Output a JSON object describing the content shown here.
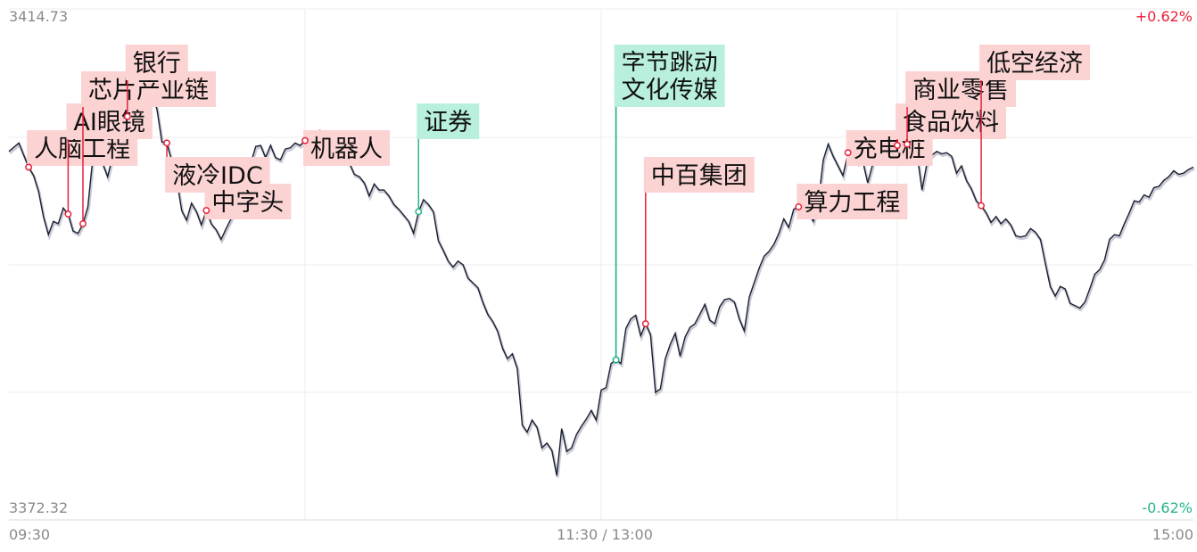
{
  "chart_data": {
    "type": "line",
    "title": "",
    "xlabel": "",
    "ylabel": "",
    "y_axis": {
      "max_label": "3414.73",
      "min_label": "3372.32",
      "max": 3414.73,
      "min": 3372.32
    },
    "pct_axis": {
      "max_label": "+0.62%",
      "min_label": "-0.62%"
    },
    "x_ticks": [
      "09:30",
      "11:30 / 13:00",
      "15:00"
    ],
    "session_minutes": 240,
    "grid": true,
    "colors": {
      "line": "#1b1e2e",
      "up": "#e8203a",
      "down": "#27b38a",
      "tag_up_bg": "#fcd3d3",
      "tag_down_bg": "#b8f0dd"
    },
    "series": [
      {
        "values": [
          [
            0,
            3402.9
          ],
          [
            2,
            3403.6
          ],
          [
            4,
            3401.6
          ],
          [
            5,
            3400.9
          ],
          [
            6,
            3399.6
          ],
          [
            7,
            3397.5
          ],
          [
            8,
            3396.0
          ],
          [
            9,
            3397.1
          ],
          [
            10,
            3396.9
          ],
          [
            11,
            3398.2
          ],
          [
            12,
            3397.7
          ],
          [
            13,
            3396.3
          ],
          [
            14,
            3396.1
          ],
          [
            15,
            3396.9
          ],
          [
            16,
            3398.3
          ],
          [
            17,
            3402.4
          ],
          [
            18,
            3405.1
          ],
          [
            19,
            3401.9
          ],
          [
            20,
            3400.8
          ],
          [
            21,
            3402.5
          ],
          [
            22,
            3405.5
          ],
          [
            23,
            3407.1
          ],
          [
            24,
            3405.8
          ],
          [
            25,
            3407.3
          ],
          [
            26,
            3407.7
          ],
          [
            27,
            3409.0
          ],
          [
            28,
            3408.7
          ],
          [
            29,
            3407.7
          ],
          [
            30,
            3406.4
          ],
          [
            31,
            3403.7
          ],
          [
            32,
            3403.6
          ],
          [
            33,
            3402.1
          ],
          [
            34,
            3400.6
          ],
          [
            35,
            3398.0
          ],
          [
            36,
            3397.2
          ],
          [
            37,
            3398.6
          ],
          [
            38,
            3397.9
          ],
          [
            39,
            3396.8
          ],
          [
            40,
            3398.0
          ],
          [
            41,
            3396.9
          ],
          [
            42,
            3396.4
          ],
          [
            43,
            3395.6
          ],
          [
            44,
            3396.5
          ],
          [
            45,
            3397.3
          ],
          [
            46,
            3398.4
          ],
          [
            47,
            3399.5
          ],
          [
            48,
            3400.4
          ],
          [
            49,
            3401.9
          ],
          [
            50,
            3403.3
          ],
          [
            51,
            3403.4
          ],
          [
            52,
            3402.4
          ],
          [
            53,
            3403.4
          ],
          [
            54,
            3402.4
          ],
          [
            55,
            3402.2
          ],
          [
            56,
            3403.1
          ],
          [
            57,
            3403.2
          ],
          [
            58,
            3403.6
          ],
          [
            59,
            3403.4
          ],
          [
            60,
            3403.8
          ],
          [
            61,
            3404.4
          ],
          [
            62,
            3403.6
          ],
          [
            63,
            3404.6
          ],
          [
            64,
            3403.4
          ],
          [
            65,
            3402.9
          ],
          [
            66,
            3403.0
          ],
          [
            67,
            3402.6
          ],
          [
            68,
            3402.1
          ],
          [
            69,
            3401.9
          ],
          [
            70,
            3401.0
          ],
          [
            71,
            3400.8
          ],
          [
            72,
            3400.3
          ],
          [
            73,
            3399.2
          ],
          [
            74,
            3400.2
          ],
          [
            75,
            3399.7
          ],
          [
            76,
            3399.7
          ],
          [
            77,
            3399.2
          ],
          [
            78,
            3398.5
          ],
          [
            79,
            3398.1
          ],
          [
            80,
            3397.6
          ],
          [
            81,
            3397.1
          ],
          [
            82,
            3396.1
          ],
          [
            83,
            3397.9
          ],
          [
            84,
            3398.9
          ],
          [
            85,
            3398.5
          ],
          [
            86,
            3397.9
          ],
          [
            87,
            3395.5
          ],
          [
            88,
            3394.7
          ],
          [
            89,
            3393.8
          ],
          [
            90,
            3393.3
          ],
          [
            91,
            3393.8
          ],
          [
            92,
            3393.5
          ],
          [
            93,
            3392.4
          ],
          [
            94,
            3392.0
          ],
          [
            95,
            3391.6
          ],
          [
            96,
            3390.4
          ],
          [
            97,
            3389.4
          ],
          [
            98,
            3388.8
          ],
          [
            99,
            3388.0
          ],
          [
            100,
            3386.6
          ],
          [
            101,
            3385.7
          ],
          [
            102,
            3386.1
          ],
          [
            103,
            3384.9
          ],
          [
            104,
            3380.2
          ],
          [
            105,
            3379.6
          ],
          [
            106,
            3380.6
          ],
          [
            107,
            3380.0
          ],
          [
            108,
            3378.3
          ],
          [
            109,
            3378.7
          ],
          [
            110,
            3378.1
          ],
          [
            111,
            3376.0
          ],
          [
            112,
            3379.9
          ],
          [
            113,
            3378.0
          ],
          [
            114,
            3378.3
          ],
          [
            115,
            3379.4
          ],
          [
            116,
            3380.1
          ],
          [
            117,
            3380.7
          ],
          [
            118,
            3381.4
          ],
          [
            119,
            3380.6
          ],
          [
            120,
            3383.1
          ],
          [
            121,
            3383.3
          ],
          [
            122,
            3385.3
          ],
          [
            123,
            3385.6
          ],
          [
            124,
            3385.3
          ],
          [
            125,
            3388.2
          ],
          [
            126,
            3389.0
          ],
          [
            127,
            3389.3
          ],
          [
            128,
            3387.6
          ],
          [
            129,
            3388.6
          ],
          [
            130,
            3387.7
          ],
          [
            131,
            3382.9
          ],
          [
            132,
            3383.2
          ],
          [
            133,
            3385.7
          ],
          [
            134,
            3386.9
          ],
          [
            135,
            3387.8
          ],
          [
            136,
            3385.9
          ],
          [
            137,
            3387.5
          ],
          [
            138,
            3388.3
          ],
          [
            139,
            3388.6
          ],
          [
            140,
            3389.4
          ],
          [
            141,
            3390.2
          ],
          [
            142,
            3388.9
          ],
          [
            143,
            3388.6
          ],
          [
            144,
            3390.0
          ],
          [
            145,
            3390.6
          ],
          [
            146,
            3390.7
          ],
          [
            147,
            3390.4
          ],
          [
            148,
            3389.0
          ],
          [
            149,
            3388.0
          ],
          [
            150,
            3390.8
          ],
          [
            151,
            3392.0
          ],
          [
            152,
            3393.2
          ],
          [
            153,
            3394.2
          ],
          [
            154,
            3394.6
          ],
          [
            155,
            3395.2
          ],
          [
            156,
            3396.1
          ],
          [
            157,
            3397.3
          ],
          [
            158,
            3396.6
          ],
          [
            159,
            3398.1
          ],
          [
            160,
            3398.3
          ],
          [
            161,
            3398.6
          ],
          [
            162,
            3397.8
          ],
          [
            163,
            3397.1
          ],
          [
            164,
            3398.7
          ],
          [
            165,
            3402.2
          ],
          [
            166,
            3403.5
          ],
          [
            167,
            3402.5
          ],
          [
            168,
            3401.7
          ],
          [
            169,
            3400.9
          ],
          [
            170,
            3402.8
          ],
          [
            171,
            3402.2
          ],
          [
            172,
            3401.9
          ],
          [
            173,
            3402.1
          ],
          [
            174,
            3400.3
          ],
          [
            175,
            3401.8
          ],
          [
            176,
            3402.9
          ],
          [
            177,
            3402.4
          ],
          [
            178,
            3402.9
          ],
          [
            179,
            3403.3
          ],
          [
            180,
            3403.4
          ],
          [
            181,
            3403.7
          ],
          [
            182,
            3403.5
          ],
          [
            183,
            3403.6
          ],
          [
            184,
            3402.7
          ],
          [
            185,
            3399.7
          ],
          [
            186,
            3401.9
          ],
          [
            187,
            3402.6
          ],
          [
            188,
            3402.9
          ],
          [
            189,
            3402.7
          ],
          [
            190,
            3402.8
          ],
          [
            191,
            3402.5
          ],
          [
            192,
            3401.1
          ],
          [
            193,
            3401.7
          ],
          [
            194,
            3400.5
          ],
          [
            195,
            3399.8
          ],
          [
            196,
            3398.8
          ],
          [
            197,
            3398.4
          ],
          [
            198,
            3397.8
          ],
          [
            199,
            3397.0
          ],
          [
            200,
            3397.5
          ],
          [
            201,
            3396.9
          ],
          [
            202,
            3397.3
          ],
          [
            203,
            3396.8
          ],
          [
            204,
            3395.9
          ],
          [
            205,
            3395.8
          ],
          [
            206,
            3395.9
          ],
          [
            207,
            3396.5
          ],
          [
            208,
            3396.2
          ],
          [
            209,
            3395.6
          ],
          [
            210,
            3393.6
          ],
          [
            211,
            3391.7
          ],
          [
            212,
            3390.9
          ],
          [
            213,
            3391.7
          ],
          [
            214,
            3391.5
          ],
          [
            215,
            3390.3
          ],
          [
            216,
            3390.1
          ],
          [
            217,
            3389.9
          ],
          [
            218,
            3390.4
          ],
          [
            219,
            3391.5
          ],
          [
            220,
            3392.7
          ],
          [
            221,
            3393.1
          ],
          [
            222,
            3393.9
          ],
          [
            223,
            3395.6
          ],
          [
            224,
            3396.0
          ],
          [
            225,
            3395.9
          ],
          [
            226,
            3396.9
          ],
          [
            227,
            3397.8
          ],
          [
            228,
            3398.8
          ],
          [
            229,
            3398.7
          ],
          [
            230,
            3399.3
          ],
          [
            231,
            3399.1
          ],
          [
            232,
            3399.9
          ],
          [
            233,
            3400.0
          ],
          [
            234,
            3400.5
          ],
          [
            235,
            3400.8
          ],
          [
            236,
            3401.3
          ],
          [
            237,
            3401.0
          ],
          [
            238,
            3401.1
          ],
          [
            239,
            3401.4
          ],
          [
            240,
            3401.6
          ]
        ]
      }
    ],
    "annotations": [
      {
        "label": "人脑工程",
        "t": 4,
        "tag_level": 2.2,
        "tone": "up"
      },
      {
        "label": "AI眼镜",
        "t": 12,
        "tag_level": 1.7,
        "tone": "up"
      },
      {
        "label": "芯片产业链",
        "t": 15,
        "tag_level": 1.1,
        "tone": "up"
      },
      {
        "label": "银行",
        "t": 24,
        "tag_level": 0.6,
        "tone": "up"
      },
      {
        "label": "液冷IDC",
        "t": 32,
        "tag_level": 2.7,
        "tone": "up"
      },
      {
        "label": "中字头",
        "t": 40,
        "tag_level": 3.2,
        "tone": "up"
      },
      {
        "label": "机器人",
        "t": 60,
        "tag_level": 2.2,
        "tone": "up"
      },
      {
        "label": "证券",
        "t": 83,
        "tag_level": 1.7,
        "tone": "down"
      },
      {
        "label": "字节跳动",
        "t": 123,
        "tag_level": 0.6,
        "tone": "down"
      },
      {
        "label": "文化传媒",
        "t": 123,
        "tag_level": 1.1,
        "tone": "down"
      },
      {
        "label": "中百集团",
        "t": 129,
        "tag_level": 2.7,
        "tone": "up"
      },
      {
        "label": "算力工程",
        "t": 160,
        "tag_level": 3.2,
        "tone": "up"
      },
      {
        "label": "充电桩",
        "t": 170,
        "tag_level": 2.2,
        "tone": "up"
      },
      {
        "label": "食品饮料",
        "t": 180,
        "tag_level": 1.7,
        "tone": "up"
      },
      {
        "label": "商业零售",
        "t": 182,
        "tag_level": 1.1,
        "tone": "up"
      },
      {
        "label": "低空经济",
        "t": 197,
        "tag_level": 0.6,
        "tone": "up"
      }
    ]
  }
}
